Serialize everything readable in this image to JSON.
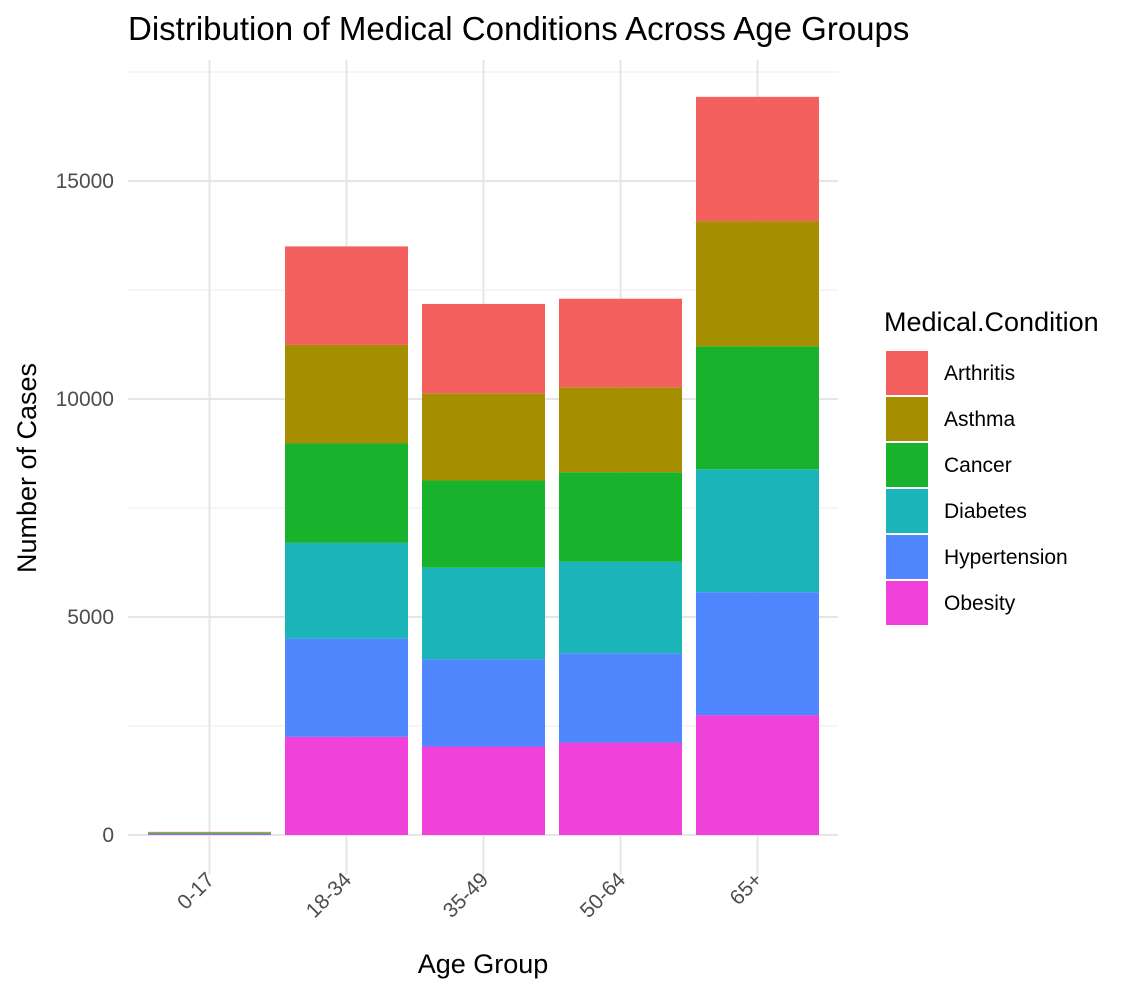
{
  "chart_data": {
    "type": "bar",
    "stacked": true,
    "title": "Distribution of Medical Conditions Across Age Groups",
    "xlabel": "Age Group",
    "ylabel": "Number of Cases",
    "categories": [
      "0-17",
      "18-34",
      "35-49",
      "50-64",
      "65+"
    ],
    "ylim": [
      0,
      17500
    ],
    "yticks": [
      0,
      5000,
      10000,
      15000
    ],
    "grid": true,
    "legend": {
      "title": "Medical.Condition",
      "position": "right"
    },
    "series": [
      {
        "name": "Obesity",
        "color": "#F041DB",
        "values": [
          12,
          2250,
          2030,
          2120,
          2750
        ]
      },
      {
        "name": "Hypertension",
        "color": "#5087FF",
        "values": [
          12,
          2260,
          2000,
          2050,
          2820
        ]
      },
      {
        "name": "Diabetes",
        "color": "#1BB4B8",
        "values": [
          12,
          2190,
          2100,
          2100,
          2820
        ]
      },
      {
        "name": "Cancer",
        "color": "#18B22D",
        "values": [
          12,
          2280,
          2000,
          2050,
          2820
        ]
      },
      {
        "name": "Asthma",
        "color": "#A58F00",
        "values": [
          12,
          2260,
          2000,
          1950,
          2870
        ]
      },
      {
        "name": "Arthritis",
        "color": "#F3605D",
        "values": [
          12,
          2260,
          2050,
          2030,
          2850
        ]
      }
    ],
    "legend_order": [
      "Arthritis",
      "Asthma",
      "Cancer",
      "Diabetes",
      "Hypertension",
      "Obesity"
    ]
  }
}
